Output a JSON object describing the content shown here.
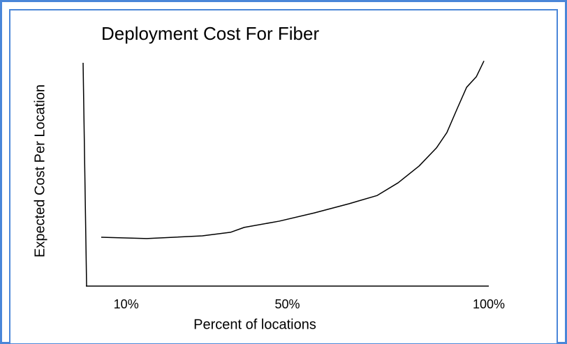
{
  "chart_data": {
    "type": "line",
    "title": "Deployment Cost For Fiber",
    "xlabel": "Percent of locations",
    "ylabel": "Expected  Cost Per Location",
    "x": [
      3.8,
      15.1,
      28.9,
      35.9,
      39.3,
      48.0,
      56.7,
      65.3,
      72.3,
      77.5,
      82.7,
      87.0,
      89.6,
      92.2,
      94.5,
      96.9,
      98.8
    ],
    "series": [
      {
        "name": "Expected Cost Per Location",
        "color": "#000000",
        "values": [
          21.9,
          21.3,
          22.5,
          24.1,
          26.3,
          29.1,
          32.8,
          36.9,
          40.6,
          46.3,
          53.8,
          61.9,
          68.8,
          79.7,
          89.1,
          93.8,
          100.9
        ]
      }
    ],
    "xlim": [
      0,
      100
    ],
    "xticks": [
      {
        "value": 10,
        "label": "10%"
      },
      {
        "value": 50,
        "label": "50%"
      },
      {
        "value": 100,
        "label": "100%"
      }
    ],
    "ylim": [
      0,
      101
    ]
  }
}
